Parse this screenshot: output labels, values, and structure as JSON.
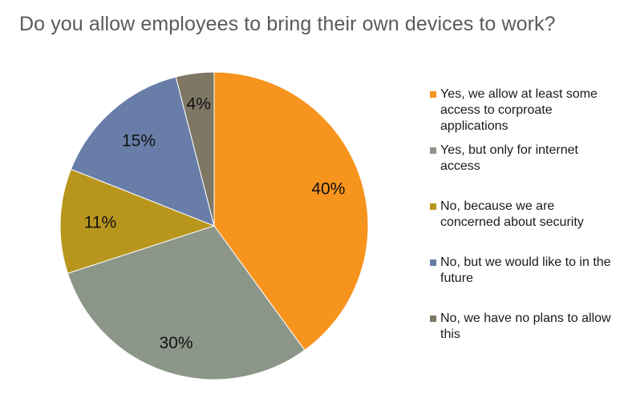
{
  "title": "Do you allow employees to bring their own devices to work?",
  "chart_data": {
    "type": "pie",
    "title": "Do you allow employees to bring their own devices to work?",
    "legend_position": "right",
    "slices": [
      {
        "label": "Yes, we allow at least some access to corproate applications",
        "value": 40,
        "display": "40%",
        "color": "#f7941d"
      },
      {
        "label": "Yes, but only for internet access",
        "value": 30,
        "display": "30%",
        "color": "#8b9689"
      },
      {
        "label": "No, because we are concerned about security",
        "value": 11,
        "display": "11%",
        "color": "#b8961e"
      },
      {
        "label": "No, but we would like to in the future",
        "value": 15,
        "display": "15%",
        "color": "#687ea8"
      },
      {
        "label": "No, we have no plans to allow this",
        "value": 4,
        "display": "4%",
        "color": "#7e7764"
      }
    ]
  }
}
